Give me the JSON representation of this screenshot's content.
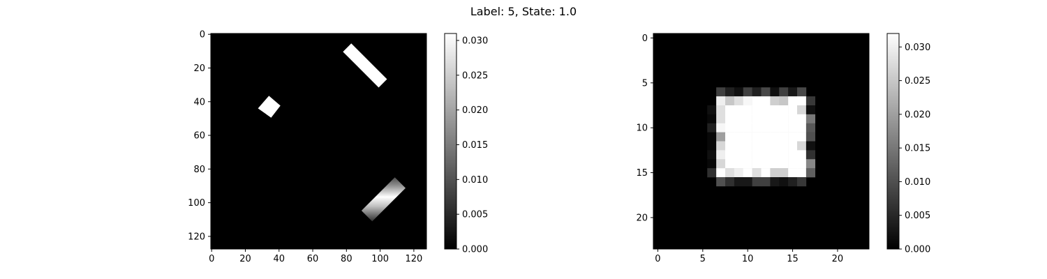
{
  "chart_data": {
    "title": "Label: 5, State: 1.0",
    "panels": [
      {
        "type": "heatmap",
        "colormap": "gray",
        "shape": [
          128,
          128
        ],
        "extent": [
          -0.5,
          127.5,
          127.5,
          -0.5
        ],
        "x_ticks": [
          0,
          20,
          40,
          60,
          80,
          100,
          120
        ],
        "y_ticks": [
          0,
          20,
          40,
          60,
          80,
          100,
          120
        ],
        "x_tick_labels": [
          "0",
          "20",
          "40",
          "60",
          "80",
          "100",
          "120"
        ],
        "y_tick_labels": [
          "0",
          "20",
          "40",
          "60",
          "80",
          "100",
          "120"
        ],
        "colorbar": {
          "range": [
            0,
            0.031
          ],
          "ticks": [
            0,
            0.005,
            0.01,
            0.015,
            0.02,
            0.025,
            0.03
          ],
          "tick_labels": [
            "0.000",
            "0.005",
            "0.010",
            "0.015",
            "0.020",
            "0.025",
            "0.030"
          ]
        },
        "background_value": 0,
        "objects": [
          {
            "kind": "bar",
            "center": [
              91,
              18.5
            ],
            "length": 30,
            "width": 7,
            "angle_deg": 45,
            "value": 0.031
          },
          {
            "kind": "diamond",
            "center": [
              34,
              43
            ],
            "radius": 6.5,
            "value": 0.031
          },
          {
            "kind": "gradient_bar",
            "center": [
              102,
              98
            ],
            "length": 28,
            "width": 9,
            "angle_deg": -45,
            "peak_value": 0.031,
            "edge_value": 0.0
          }
        ]
      },
      {
        "type": "heatmap",
        "colormap": "gray",
        "shape": [
          24,
          24
        ],
        "extent": [
          -0.5,
          23.5,
          23.5,
          -0.5
        ],
        "x_ticks": [
          0,
          5,
          10,
          15,
          20
        ],
        "y_ticks": [
          0,
          5,
          10,
          15,
          20
        ],
        "x_tick_labels": [
          "0",
          "5",
          "10",
          "15",
          "20"
        ],
        "y_tick_labels": [
          "0",
          "5",
          "10",
          "15",
          "20"
        ],
        "colorbar": {
          "range": [
            0,
            0.032
          ],
          "ticks": [
            0,
            0.005,
            0.01,
            0.015,
            0.02,
            0.025,
            0.03
          ],
          "tick_labels": [
            "0.000",
            "0.005",
            "0.010",
            "0.015",
            "0.020",
            "0.025",
            "0.030"
          ]
        },
        "rows": [
          {
            "r": 0,
            "v": [
              0,
              0,
              0,
              0,
              0,
              0,
              0,
              0,
              0,
              0,
              0,
              0,
              0,
              0,
              0,
              0,
              0,
              0,
              0,
              0,
              0,
              0,
              0,
              0
            ]
          },
          {
            "r": 1,
            "v": [
              0,
              0,
              0,
              0,
              0,
              0,
              0,
              0,
              0,
              0,
              0,
              0,
              0,
              0,
              0,
              0,
              0,
              0,
              0,
              0,
              0,
              0,
              0,
              0
            ]
          },
          {
            "r": 2,
            "v": [
              0,
              0,
              0,
              0,
              0,
              0,
              0,
              0,
              0,
              0,
              0,
              0,
              0,
              0,
              0,
              0,
              0,
              0,
              0,
              0,
              0,
              0,
              0,
              0
            ]
          },
          {
            "r": 3,
            "v": [
              0,
              0,
              0,
              0,
              0,
              0,
              0,
              0,
              0,
              0,
              0,
              0,
              0,
              0,
              0,
              0,
              0,
              0,
              0,
              0,
              0,
              0,
              0,
              0
            ]
          },
          {
            "r": 4,
            "v": [
              0,
              0,
              0,
              0,
              0,
              0,
              0,
              0,
              0,
              0,
              0,
              0,
              0,
              0,
              0,
              0,
              0,
              0,
              0,
              0,
              0,
              0,
              0,
              0
            ]
          },
          {
            "r": 5,
            "v": [
              0,
              0,
              0,
              0,
              0,
              0,
              0,
              0,
              0,
              0,
              0,
              0,
              0,
              0,
              0,
              0,
              0,
              0,
              0,
              0,
              0,
              0,
              0,
              0
            ]
          },
          {
            "r": 6,
            "v": [
              0,
              0,
              0,
              0,
              0,
              0,
              0,
              0.008,
              0.004,
              0.002,
              0.008,
              0.004,
              0.009,
              0.002,
              0.008,
              0.003,
              0.009,
              0,
              0,
              0,
              0,
              0,
              0,
              0
            ]
          },
          {
            "r": 7,
            "v": [
              0,
              0,
              0,
              0,
              0,
              0,
              0,
              0.03,
              0.025,
              0.028,
              0.031,
              0.032,
              0.032,
              0.026,
              0.025,
              0.032,
              0.032,
              0.007,
              0,
              0,
              0,
              0,
              0,
              0
            ]
          },
          {
            "r": 8,
            "v": [
              0,
              0,
              0,
              0,
              0,
              0,
              0.002,
              0.028,
              0.032,
              0.032,
              0.032,
              0.032,
              0.032,
              0.032,
              0.032,
              0.032,
              0.027,
              0.002,
              0,
              0,
              0,
              0,
              0,
              0
            ]
          },
          {
            "r": 9,
            "v": [
              0,
              0,
              0,
              0,
              0,
              0,
              0.001,
              0.028,
              0.032,
              0.032,
              0.032,
              0.032,
              0.032,
              0.032,
              0.032,
              0.032,
              0.032,
              0.015,
              0,
              0,
              0,
              0,
              0,
              0
            ]
          },
          {
            "r": 10,
            "v": [
              0,
              0,
              0,
              0,
              0,
              0,
              0.004,
              0.031,
              0.032,
              0.032,
              0.032,
              0.032,
              0.032,
              0.032,
              0.032,
              0.032,
              0.032,
              0.011,
              0,
              0,
              0,
              0,
              0,
              0
            ]
          },
          {
            "r": 11,
            "v": [
              0,
              0,
              0,
              0,
              0,
              0,
              0.001,
              0.02,
              0.032,
              0.032,
              0.032,
              0.032,
              0.032,
              0.032,
              0.032,
              0.032,
              0.032,
              0.01,
              0,
              0,
              0,
              0,
              0,
              0
            ]
          },
          {
            "r": 12,
            "v": [
              0,
              0,
              0,
              0,
              0,
              0,
              0.001,
              0.027,
              0.032,
              0.032,
              0.032,
              0.032,
              0.032,
              0.032,
              0.032,
              0.032,
              0.027,
              0.002,
              0,
              0,
              0,
              0,
              0,
              0
            ]
          },
          {
            "r": 13,
            "v": [
              0,
              0,
              0,
              0,
              0,
              0,
              0.002,
              0.03,
              0.032,
              0.032,
              0.032,
              0.032,
              0.032,
              0.032,
              0.032,
              0.032,
              0.032,
              0.006,
              0,
              0,
              0,
              0,
              0,
              0
            ]
          },
          {
            "r": 14,
            "v": [
              0,
              0,
              0,
              0,
              0,
              0,
              0.001,
              0.027,
              0.032,
              0.032,
              0.032,
              0.032,
              0.032,
              0.032,
              0.032,
              0.032,
              0.032,
              0.017,
              0,
              0,
              0,
              0,
              0,
              0
            ]
          },
          {
            "r": 15,
            "v": [
              0,
              0,
              0,
              0,
              0,
              0,
              0.006,
              0.032,
              0.028,
              0.03,
              0.032,
              0.028,
              0.032,
              0.026,
              0.026,
              0.032,
              0.032,
              0.012,
              0,
              0,
              0,
              0,
              0,
              0
            ]
          },
          {
            "r": 16,
            "v": [
              0,
              0,
              0,
              0,
              0,
              0,
              0,
              0.01,
              0.006,
              0.003,
              0.003,
              0.008,
              0.008,
              0.003,
              0.002,
              0.004,
              0.007,
              0,
              0,
              0,
              0,
              0,
              0,
              0
            ]
          },
          {
            "r": 17,
            "v": [
              0,
              0,
              0,
              0,
              0,
              0,
              0,
              0,
              0,
              0,
              0,
              0,
              0,
              0,
              0,
              0,
              0,
              0,
              0,
              0,
              0,
              0,
              0,
              0
            ]
          },
          {
            "r": 18,
            "v": [
              0,
              0,
              0,
              0,
              0,
              0,
              0,
              0,
              0,
              0,
              0,
              0,
              0,
              0,
              0,
              0,
              0,
              0,
              0,
              0,
              0,
              0,
              0,
              0
            ]
          },
          {
            "r": 19,
            "v": [
              0,
              0,
              0,
              0,
              0,
              0,
              0,
              0,
              0,
              0,
              0,
              0,
              0,
              0,
              0,
              0,
              0,
              0,
              0,
              0,
              0,
              0,
              0,
              0
            ]
          },
          {
            "r": 20,
            "v": [
              0,
              0,
              0,
              0,
              0,
              0,
              0,
              0,
              0,
              0,
              0,
              0,
              0,
              0,
              0,
              0,
              0,
              0,
              0,
              0,
              0,
              0,
              0,
              0
            ]
          },
          {
            "r": 21,
            "v": [
              0,
              0,
              0,
              0,
              0,
              0,
              0,
              0,
              0,
              0,
              0,
              0,
              0,
              0,
              0,
              0,
              0,
              0,
              0,
              0,
              0,
              0,
              0,
              0
            ]
          },
          {
            "r": 22,
            "v": [
              0,
              0,
              0,
              0,
              0,
              0,
              0,
              0,
              0,
              0,
              0,
              0,
              0,
              0,
              0,
              0,
              0,
              0,
              0,
              0,
              0,
              0,
              0,
              0
            ]
          },
          {
            "r": 23,
            "v": [
              0,
              0,
              0,
              0,
              0,
              0,
              0,
              0,
              0,
              0,
              0,
              0,
              0,
              0,
              0,
              0,
              0,
              0,
              0,
              0,
              0,
              0,
              0,
              0
            ]
          }
        ]
      }
    ]
  }
}
